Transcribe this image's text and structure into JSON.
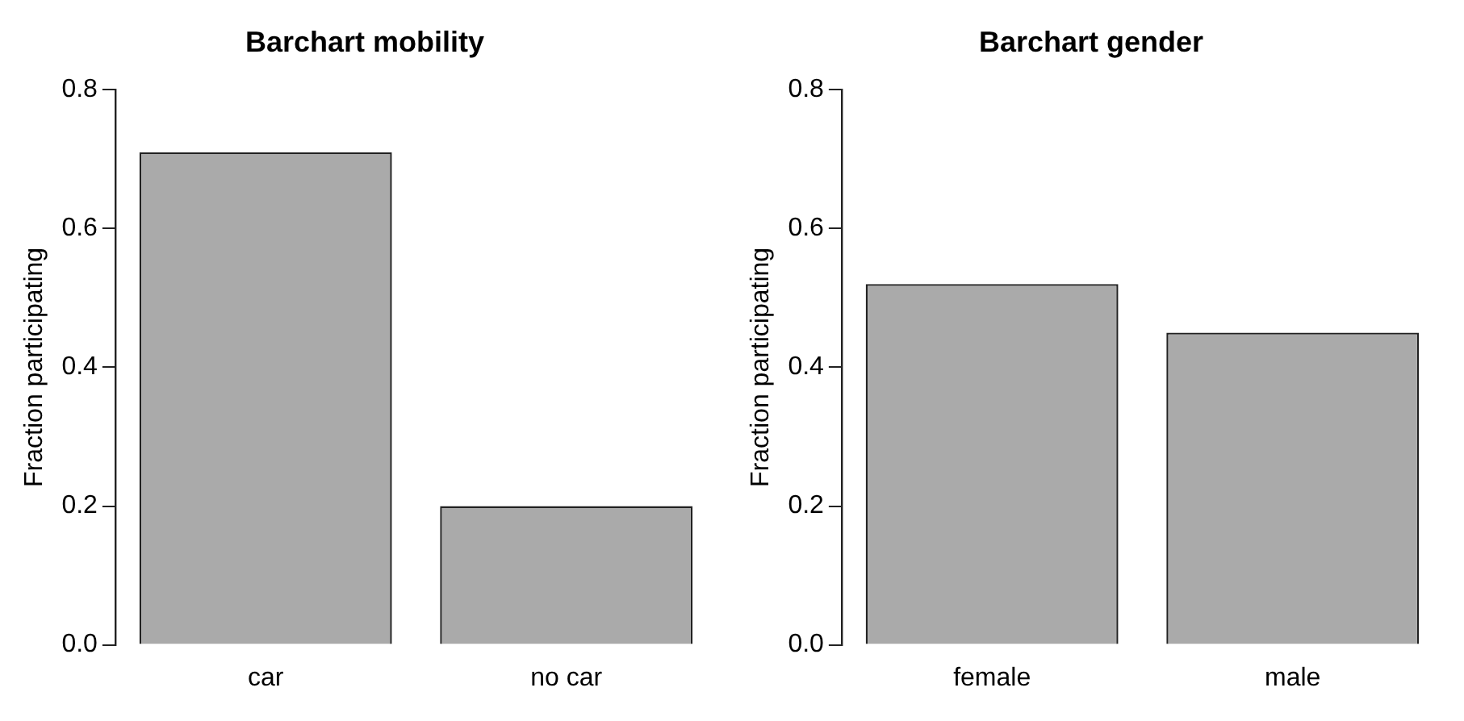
{
  "chart_data": [
    {
      "type": "bar",
      "title": "Barchart mobility",
      "ylabel": "Fraction participating",
      "categories": [
        "car",
        "no car"
      ],
      "values": [
        0.71,
        0.2
      ],
      "color": "#aaaaaa",
      "ylim": [
        0,
        0.8
      ],
      "yticks": [
        {
          "value": 0,
          "label": "0.0"
        },
        0.2,
        0.4,
        0.6,
        0.8
      ],
      "grid": false,
      "legend": false
    },
    {
      "type": "bar",
      "title": "Barchart gender",
      "ylabel": "Fraction participating",
      "categories": [
        "female",
        "male"
      ],
      "values": [
        0.52,
        0.45
      ],
      "color": "#aaaaaa",
      "ylim": [
        0,
        0.8
      ],
      "yticks": [
        {
          "value": 0,
          "label": "0.0"
        },
        0.2,
        0.4,
        0.6,
        0.8
      ],
      "grid": false,
      "legend": false
    }
  ]
}
